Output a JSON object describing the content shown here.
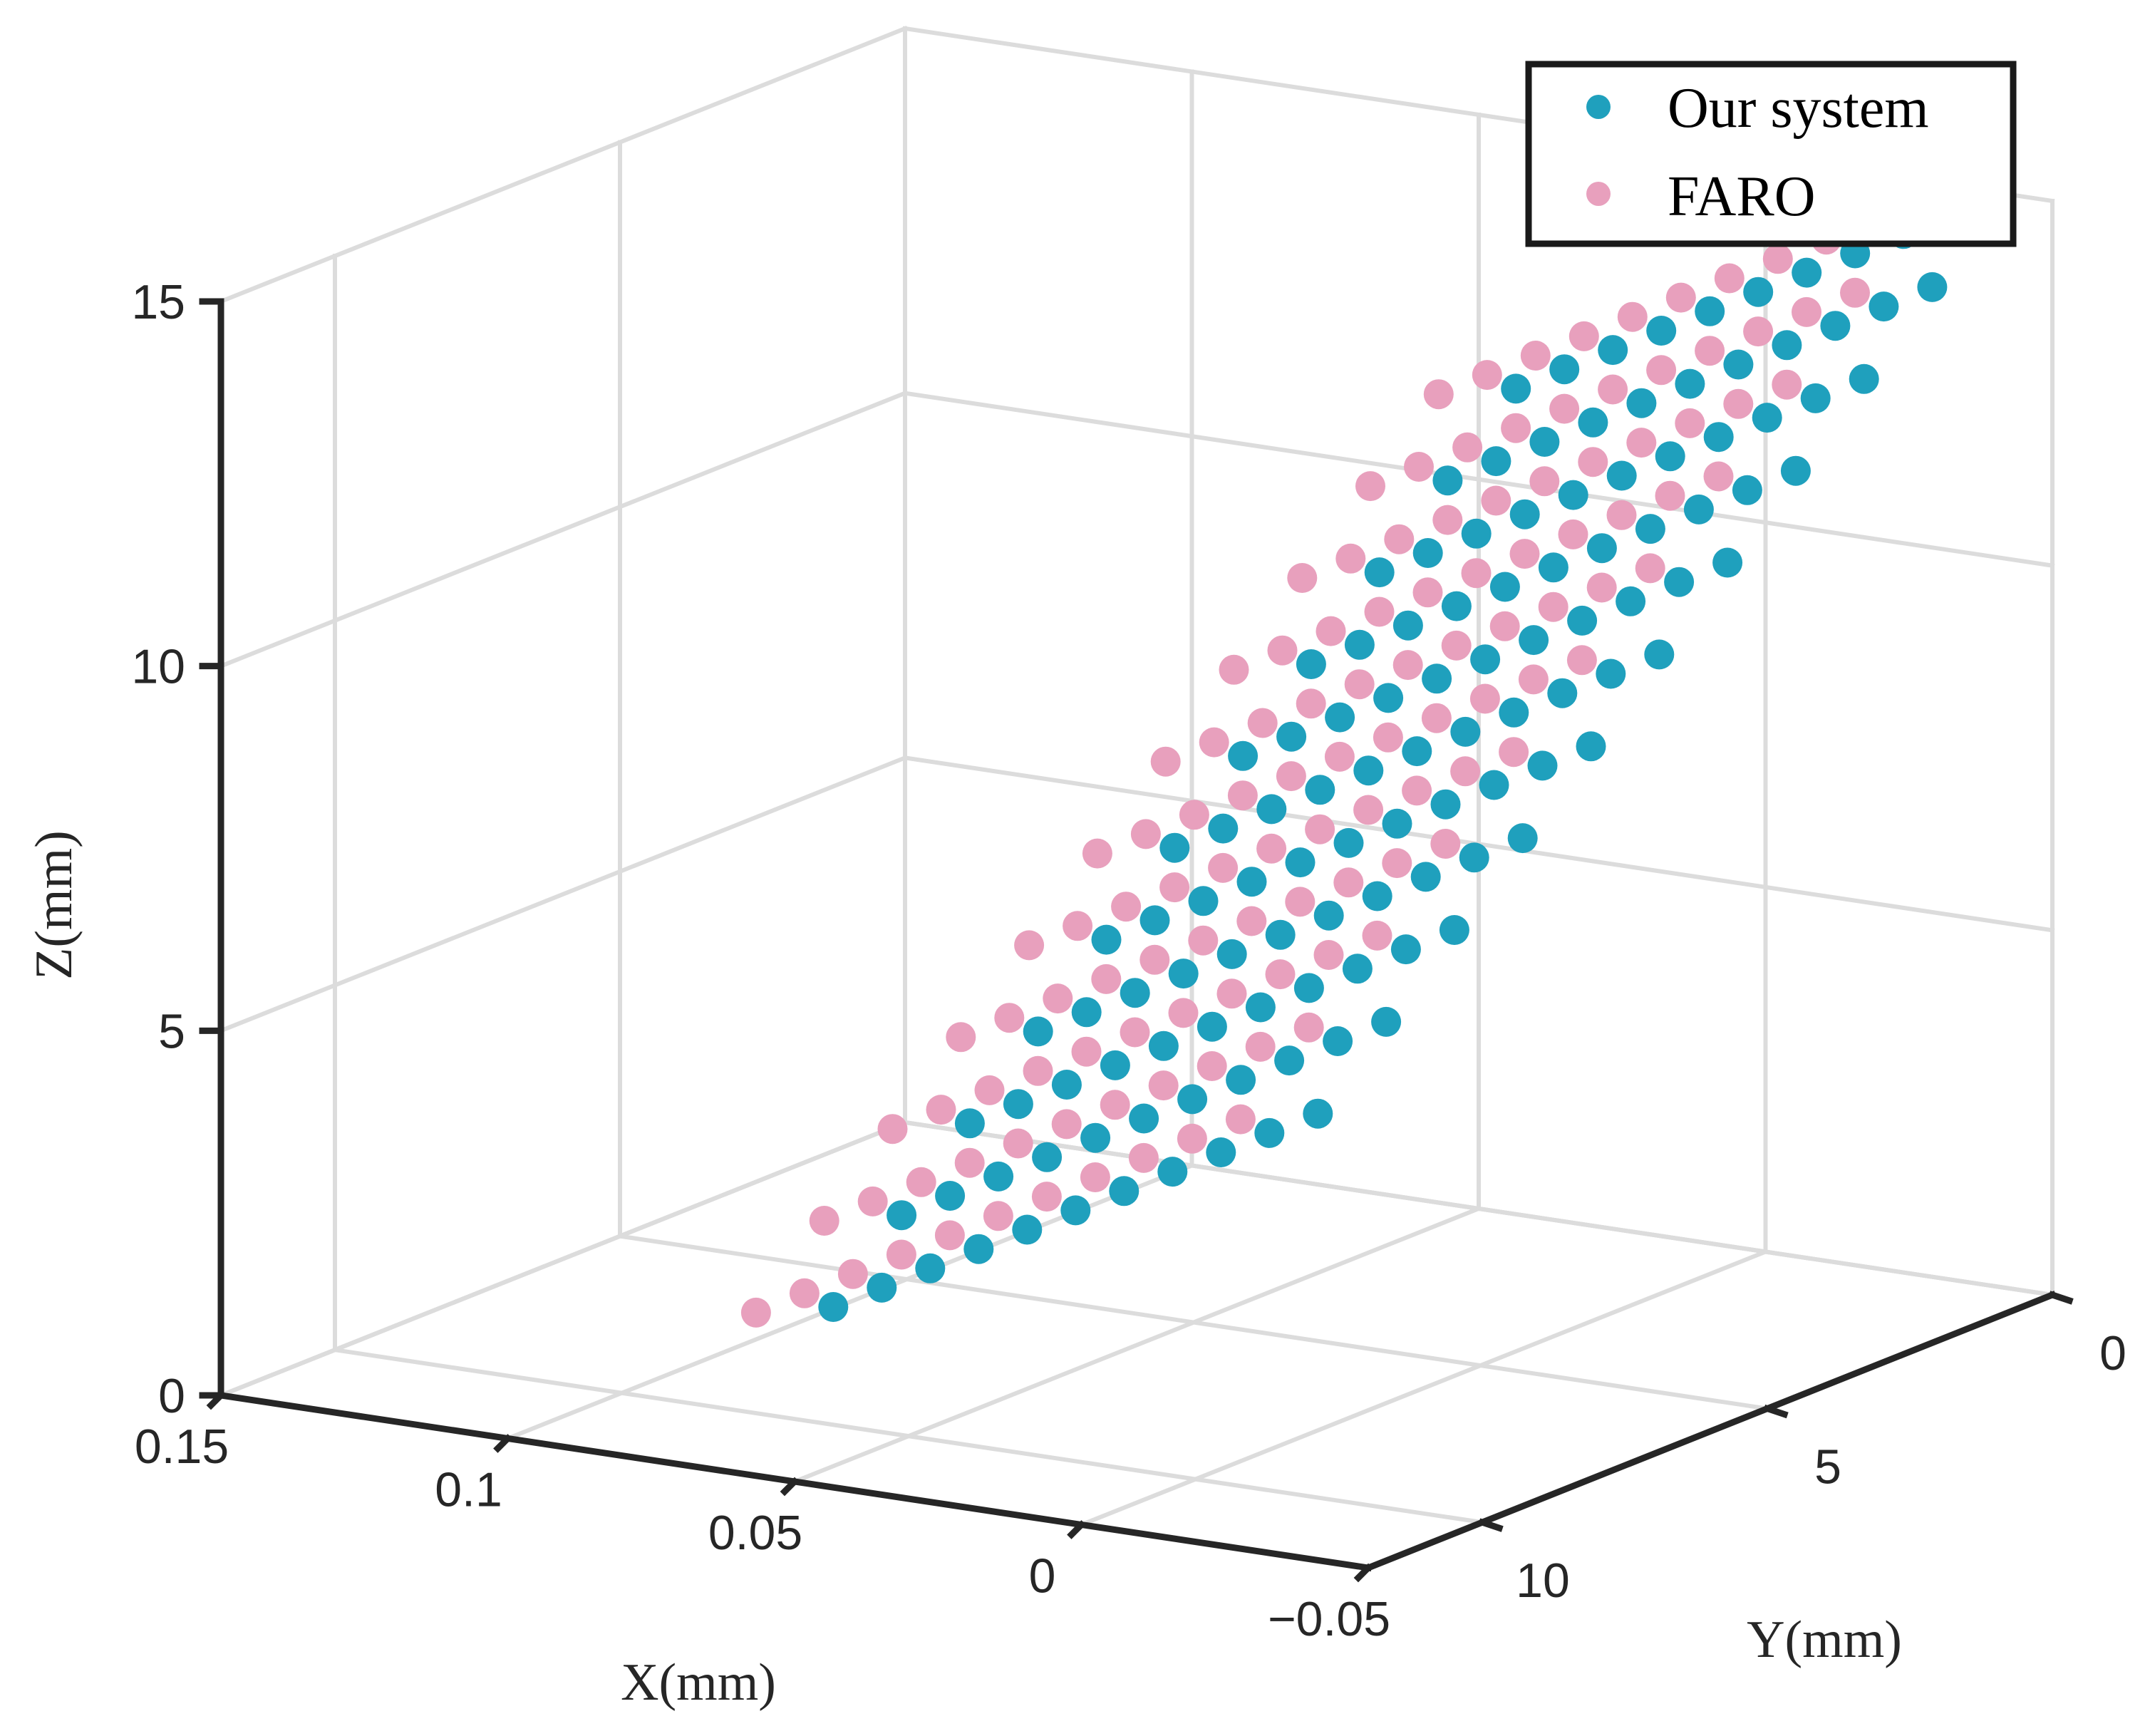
{
  "chart_data": {
    "type": "scatter3d",
    "title": "",
    "xlabel": "X(mm)",
    "ylabel": "Y(mm)",
    "zlabel": "Z(mm)",
    "xlim": [
      -0.05,
      0.15
    ],
    "ylim": [
      0,
      12
    ],
    "zlim": [
      0,
      15
    ],
    "grid": true,
    "legend_position": "top-right",
    "x_ticks": [
      {
        "value": 0.15,
        "label": "0.15"
      },
      {
        "value": 0.1,
        "label": "0.1"
      },
      {
        "value": 0.05,
        "label": "0.05"
      },
      {
        "value": 0,
        "label": "0"
      },
      {
        "value": -0.05,
        "label": "−0.05"
      }
    ],
    "y_ticks": [
      {
        "value": 0,
        "label": "0"
      },
      {
        "value": 5,
        "label": "5"
      },
      {
        "value": 10,
        "label": "10"
      }
    ],
    "z_ticks": [
      {
        "value": 0,
        "label": "0"
      },
      {
        "value": 5,
        "label": "5"
      },
      {
        "value": 10,
        "label": "10"
      },
      {
        "value": 15,
        "label": "15"
      }
    ],
    "series": [
      {
        "name": "Our system",
        "color": "#1fa0bd",
        "x_offset": 0.0,
        "y_shift": 0.0
      },
      {
        "name": "FARO",
        "color": "#e8a0bd",
        "x_offset": 0.008,
        "y_shift": 0.55
      }
    ],
    "surface": {
      "description": "inclined planar surface sampled on a grid",
      "y_values": [
        1.0,
        1.85,
        2.7,
        3.55,
        4.4,
        5.25,
        6.1,
        6.95,
        7.8,
        8.65,
        9.5
      ],
      "z_values": [
        1.4,
        2.8,
        4.2,
        5.6,
        7.0,
        8.4,
        9.8,
        11.2,
        12.6,
        14.0,
        15.4
      ],
      "x_intercept": 0.08,
      "x_slope_per_mm_z": -0.0085
    }
  },
  "legend": {
    "entries": [
      "Our system",
      "FARO"
    ]
  }
}
